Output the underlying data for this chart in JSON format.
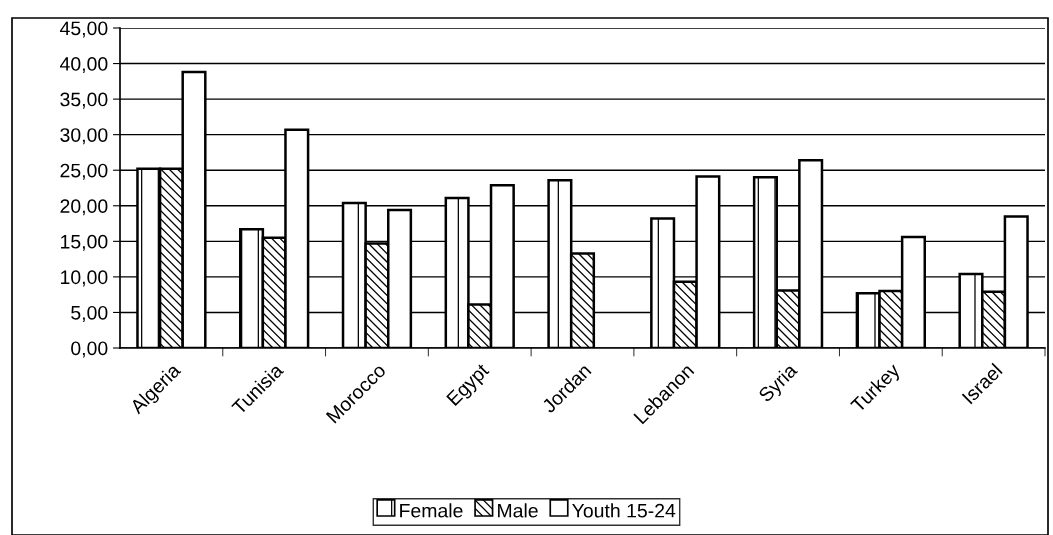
{
  "chart_data": {
    "type": "bar",
    "categories": [
      "Algeria",
      "Tunisia",
      "Morocco",
      "Egypt",
      "Jordan",
      "Lebanon",
      "Syria",
      "Turkey",
      "Israel"
    ],
    "series": [
      {
        "name": "Female",
        "color": "#ffffff",
        "values": [
          25.2,
          16.7,
          20.4,
          21.1,
          23.6,
          18.2,
          24.0,
          7.7,
          10.4
        ]
      },
      {
        "name": "Male",
        "color": "#ffffff",
        "values": [
          25.2,
          15.5,
          14.7,
          6.1,
          13.3,
          9.3,
          8.1,
          8.0,
          7.9
        ]
      },
      {
        "name": "Youth 15-24",
        "color": "#ffffff",
        "values": [
          38.8,
          30.7,
          19.4,
          22.9,
          null,
          24.1,
          26.4,
          15.6,
          18.5
        ]
      }
    ],
    "ylim": [
      0,
      45
    ],
    "yticks": [
      {
        "value": 0,
        "label": "0,00"
      },
      {
        "value": 5,
        "label": "5,00"
      },
      {
        "value": 10,
        "label": "10,00"
      },
      {
        "value": 15,
        "label": "15,00"
      },
      {
        "value": 20,
        "label": "20,00"
      },
      {
        "value": 25,
        "label": "25,00"
      },
      {
        "value": 30,
        "label": "30,00"
      },
      {
        "value": 35,
        "label": "35,00"
      },
      {
        "value": 40,
        "label": "40,00"
      },
      {
        "value": 45,
        "label": "45,00"
      }
    ],
    "grid": "y",
    "legend": "bottom"
  }
}
